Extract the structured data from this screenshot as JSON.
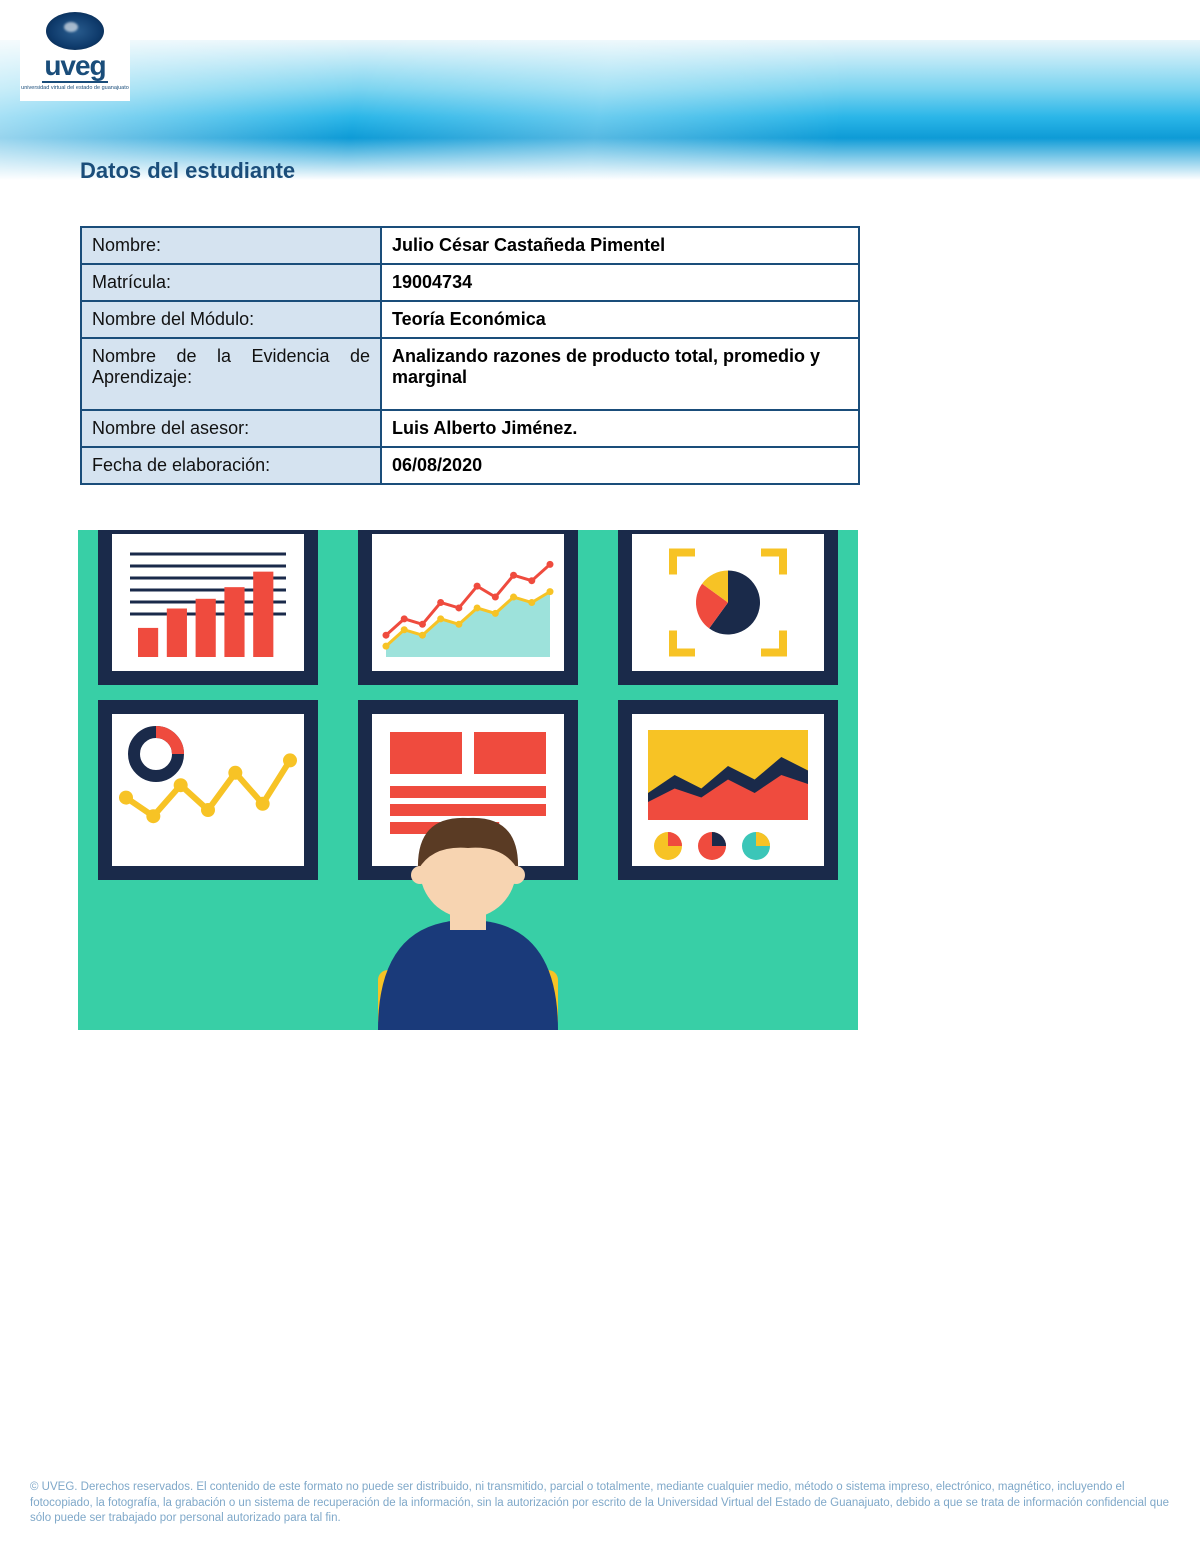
{
  "logo": {
    "brand": "uveg",
    "tagline": "universidad virtual del estado de guanajuato"
  },
  "section_title": "Datos del estudiante",
  "title_color": "#1a4d7a",
  "table": {
    "border_color": "#1a4d7a",
    "label_bg": "#d5e3f0",
    "value_bg": "#ffffff",
    "rows": [
      {
        "label": "Nombre:",
        "value": "Julio César Castañeda Pimentel"
      },
      {
        "label": "Matrícula:",
        "value": "19004734"
      },
      {
        "label": "Nombre del Módulo:",
        "value": "Teoría Económica"
      },
      {
        "label": "Nombre de la Evidencia de Aprendizaje:",
        "value": "Analizando razones de producto total, promedio y marginal",
        "tall": true,
        "justify": true
      },
      {
        "label": "Nombre del asesor:",
        "value": "Luis Alberto Jiménez."
      },
      {
        "label": "Fecha de elaboración:",
        "value": "06/08/2020"
      }
    ]
  },
  "illustration": {
    "bg": "#38cfa6",
    "monitor_frame": "#1a2a4a",
    "monitor_screen": "#ffffff",
    "red": "#ef4b3e",
    "yellow": "#f7c325",
    "navy": "#1a2a4a",
    "teal": "#3bc6b8",
    "person_hair": "#5a3b24",
    "person_skin": "#f7d4b1",
    "person_shirt": "#1a3a7a",
    "chair": "#f7c325",
    "panels": {
      "top_left_bar": {
        "bars": [
          30,
          50,
          60,
          72,
          88
        ],
        "lines": 6
      },
      "top_mid_line": {
        "series1": [
          20,
          35,
          30,
          50,
          45,
          65,
          55,
          75,
          70,
          85
        ],
        "series2": [
          10,
          25,
          20,
          35,
          30,
          45,
          40,
          55,
          50,
          60
        ]
      },
      "top_right_pie": {
        "slices": [
          60,
          25,
          15
        ],
        "colors": [
          "#1a2a4a",
          "#ef4b3e",
          "#f7c325"
        ]
      },
      "bot_left_line": {
        "donut_colors": [
          "#1a2a4a",
          "#ef4b3e"
        ],
        "points": [
          60,
          45,
          70,
          50,
          80,
          55,
          90
        ]
      },
      "bot_mid_bars": {
        "rows": 3
      },
      "bot_right_area": {
        "series1": [
          30,
          50,
          35,
          60,
          45,
          70,
          55
        ],
        "series2": [
          20,
          35,
          25,
          45,
          30,
          50,
          40
        ]
      }
    }
  },
  "footer": "© UVEG. Derechos reservados. El contenido de este formato no puede ser  distribuido, ni transmitido, parcial o totalmente, mediante cualquier medio, método o sistema impreso, electrónico, magnético, incluyendo el fotocopiado, la fotografía, la grabación o un sistema de recuperación de la información, sin la autorización por escrito de la Universidad Virtual del Estado de Guanajuato, debido a que se trata de información confidencial que sólo puede ser trabajado por personal autorizado para tal fin."
}
